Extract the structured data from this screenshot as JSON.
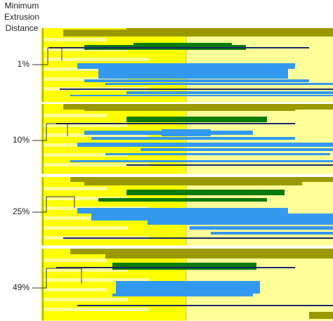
{
  "header": {
    "lines": [
      "Minimum",
      "Extrusion",
      "Distance"
    ]
  },
  "panels": [
    {
      "label": "1%"
    },
    {
      "label": "10%"
    },
    {
      "label": "25%"
    },
    {
      "label": "49%"
    }
  ]
}
